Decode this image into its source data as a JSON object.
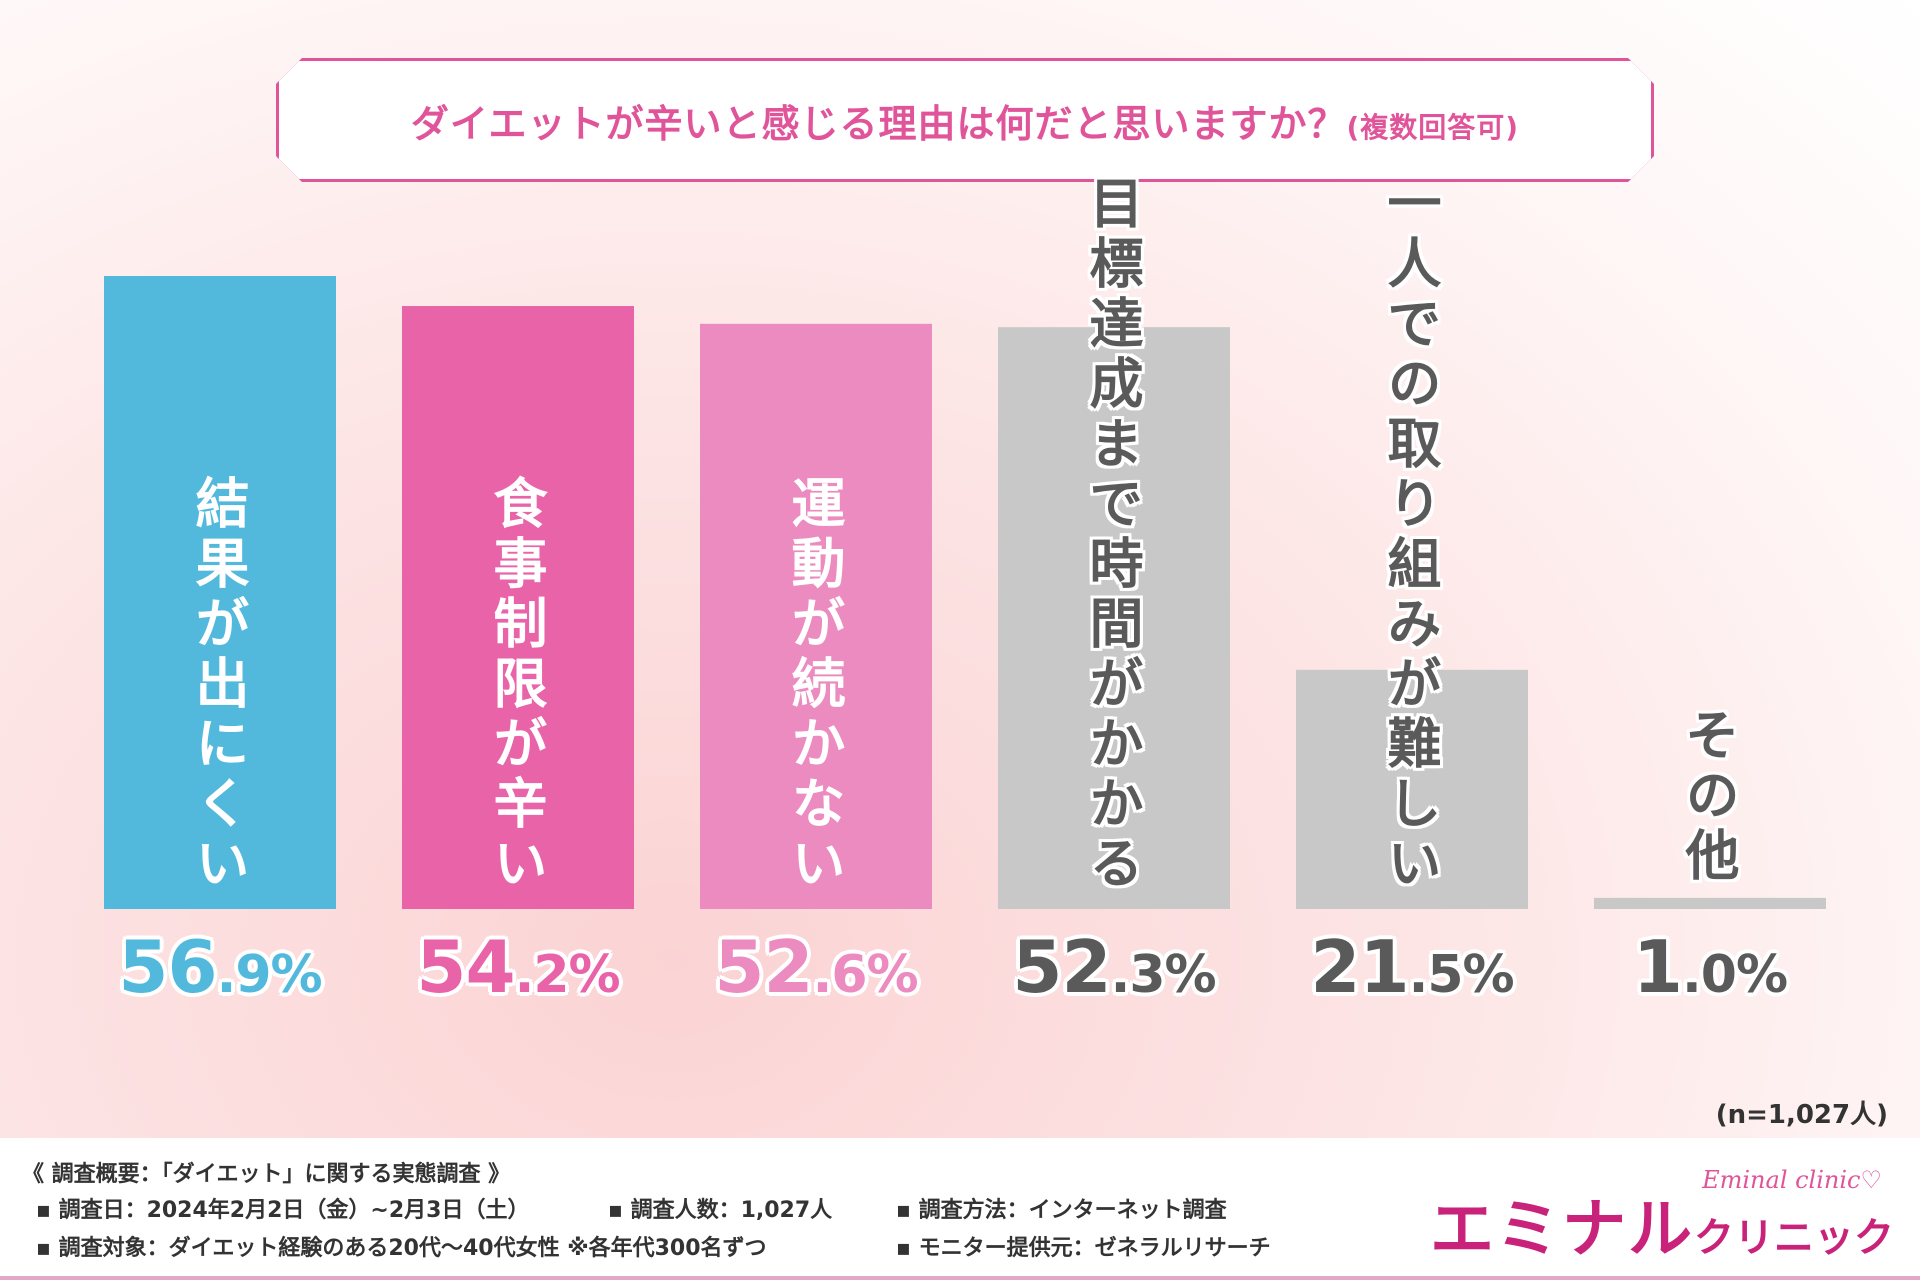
{
  "title": {
    "main": "ダイエットが辛いと感じる理由は何だと思いますか？",
    "note": "(複数回答可)"
  },
  "chart_data": {
    "type": "bar",
    "title": "ダイエットが辛いと感じる理由は何だと思いますか？(複数回答可)",
    "categories": [
      "結果が出にくい",
      "食事制限が辛い",
      "運動が続かない",
      "目標達成まで時間がかかる",
      "一人での取り組みが難しい",
      "その他"
    ],
    "values": [
      56.9,
      54.2,
      52.6,
      52.3,
      21.5,
      1.0
    ],
    "value_labels": [
      {
        "int": "56",
        "dec": ".9%"
      },
      {
        "int": "54",
        "dec": ".2%"
      },
      {
        "int": "52",
        "dec": ".6%"
      },
      {
        "int": "52",
        "dec": ".3%"
      },
      {
        "int": "21",
        "dec": ".5%"
      },
      {
        "int": "1",
        "dec": ".0%"
      }
    ],
    "colors": [
      "#52b9dd",
      "#e963a8",
      "#eb8bbf",
      "#c8c8c8",
      "#c8c8c8",
      "#c8c8c8"
    ],
    "label_colors": [
      "#52b9dd",
      "#e963a8",
      "#eb8bbf",
      "#5a5a5a",
      "#5a5a5a",
      "#5a5a5a"
    ],
    "ylim": [
      0,
      56.9
    ],
    "unit": "%"
  },
  "sample_size": "(n=1,027人)",
  "footer": {
    "heading": "《 調査概要：「ダイエット」に関する実態調査 》",
    "date": "▪ 調査日：2024年2月2日（金）~2月3日（土）",
    "count": "▪ 調査人数：1,027人",
    "method": "▪ 調査方法：インターネット調査",
    "target": "▪ 調査対象：ダイエット経験のある20代～40代女性 ※各年代300名ずつ",
    "provider": "▪ モニター提供元：ゼネラルリサーチ"
  },
  "logo": {
    "en": "Eminal clinic♡",
    "jp_main": "エミナル",
    "jp_sub": "クリニック"
  }
}
